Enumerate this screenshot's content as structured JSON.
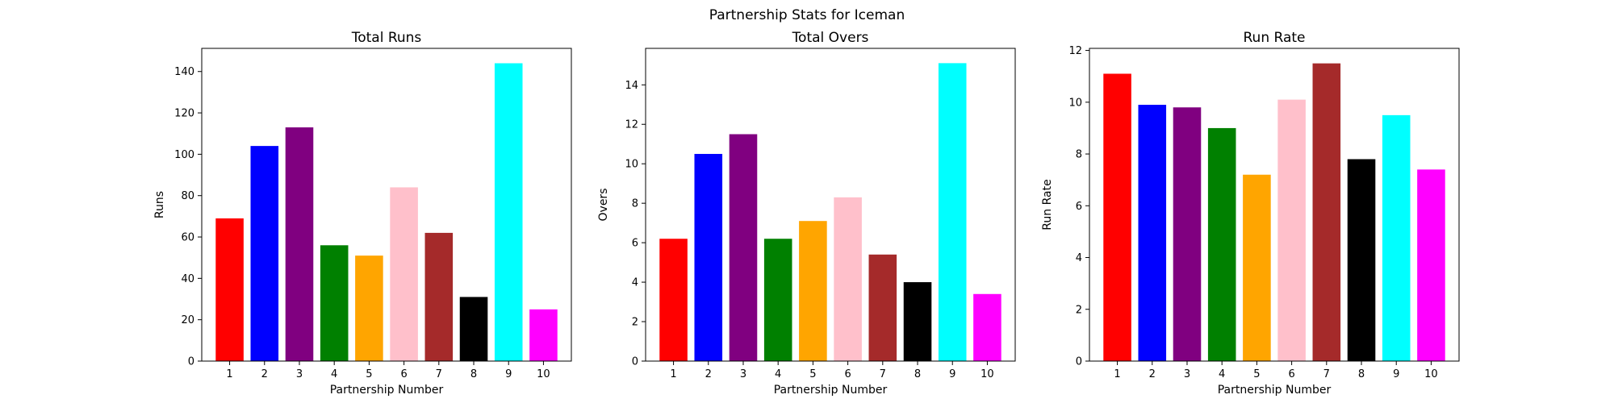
{
  "figure": {
    "suptitle": "Partnership Stats for Iceman"
  },
  "chart_data": [
    {
      "type": "bar",
      "title": "Total Runs",
      "xlabel": "Partnership Number",
      "ylabel": "Runs",
      "categories": [
        "1",
        "2",
        "3",
        "4",
        "5",
        "6",
        "7",
        "8",
        "9",
        "10"
      ],
      "values": [
        69,
        104,
        113,
        56,
        51,
        84,
        62,
        31,
        144,
        25
      ],
      "colors": [
        "#ff0000",
        "#0000ff",
        "#800080",
        "#008000",
        "#ffa500",
        "#ffc0cb",
        "#a52a2a",
        "#000000",
        "#00ffff",
        "#ff00ff"
      ],
      "ylim": [
        0,
        151.2
      ],
      "yticks": [
        0,
        20,
        40,
        60,
        80,
        100,
        120,
        140
      ],
      "ytick_labels": [
        "0",
        "20",
        "40",
        "60",
        "80",
        "100",
        "120",
        "140"
      ],
      "grid": false,
      "legend": "none"
    },
    {
      "type": "bar",
      "title": "Total Overs",
      "xlabel": "Partnership Number",
      "ylabel": "Overs",
      "categories": [
        "1",
        "2",
        "3",
        "4",
        "5",
        "6",
        "7",
        "8",
        "9",
        "10"
      ],
      "values": [
        6.2,
        10.5,
        11.5,
        6.2,
        7.1,
        8.3,
        5.4,
        4.0,
        15.1,
        3.4
      ],
      "colors": [
        "#ff0000",
        "#0000ff",
        "#800080",
        "#008000",
        "#ffa500",
        "#ffc0cb",
        "#a52a2a",
        "#000000",
        "#00ffff",
        "#ff00ff"
      ],
      "ylim": [
        0,
        15.85
      ],
      "yticks": [
        0,
        2,
        4,
        6,
        8,
        10,
        12,
        14
      ],
      "ytick_labels": [
        "0",
        "2",
        "4",
        "6",
        "8",
        "10",
        "12",
        "14"
      ],
      "grid": false,
      "legend": "none"
    },
    {
      "type": "bar",
      "title": "Run Rate",
      "xlabel": "Partnership Number",
      "ylabel": "Run Rate",
      "categories": [
        "1",
        "2",
        "3",
        "4",
        "5",
        "6",
        "7",
        "8",
        "9",
        "10"
      ],
      "values": [
        11.1,
        9.9,
        9.8,
        9.0,
        7.2,
        10.1,
        11.5,
        7.8,
        9.5,
        7.4
      ],
      "colors": [
        "#ff0000",
        "#0000ff",
        "#800080",
        "#008000",
        "#ffa500",
        "#ffc0cb",
        "#a52a2a",
        "#000000",
        "#00ffff",
        "#ff00ff"
      ],
      "ylim": [
        0,
        12.08
      ],
      "yticks": [
        0,
        2,
        4,
        6,
        8,
        10,
        12
      ],
      "ytick_labels": [
        "0",
        "2",
        "4",
        "6",
        "8",
        "10",
        "12"
      ],
      "grid": false,
      "legend": "none"
    }
  ]
}
